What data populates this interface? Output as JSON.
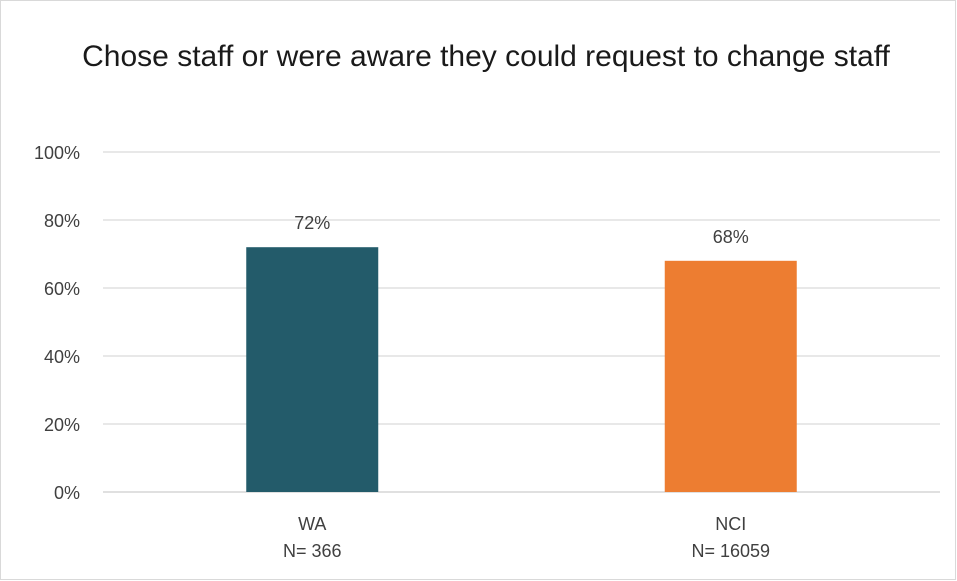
{
  "chart_data": {
    "type": "bar",
    "title": "Chose staff or were aware they could request to change staff",
    "categories": [
      "WA",
      "NCI"
    ],
    "category_sublabels": [
      "N= 366",
      "N= 16059"
    ],
    "values": [
      72,
      68
    ],
    "data_labels": [
      "72%",
      "68%"
    ],
    "bar_colors": [
      "#235B6A",
      "#ED7D31"
    ],
    "ylim": [
      0,
      100
    ],
    "y_ticks": [
      0,
      20,
      40,
      60,
      80,
      100
    ],
    "y_tick_labels": [
      "0%",
      "20%",
      "40%",
      "60%",
      "80%",
      "100%"
    ],
    "grid": true,
    "legend": "none",
    "xlabel": "",
    "ylabel": ""
  }
}
